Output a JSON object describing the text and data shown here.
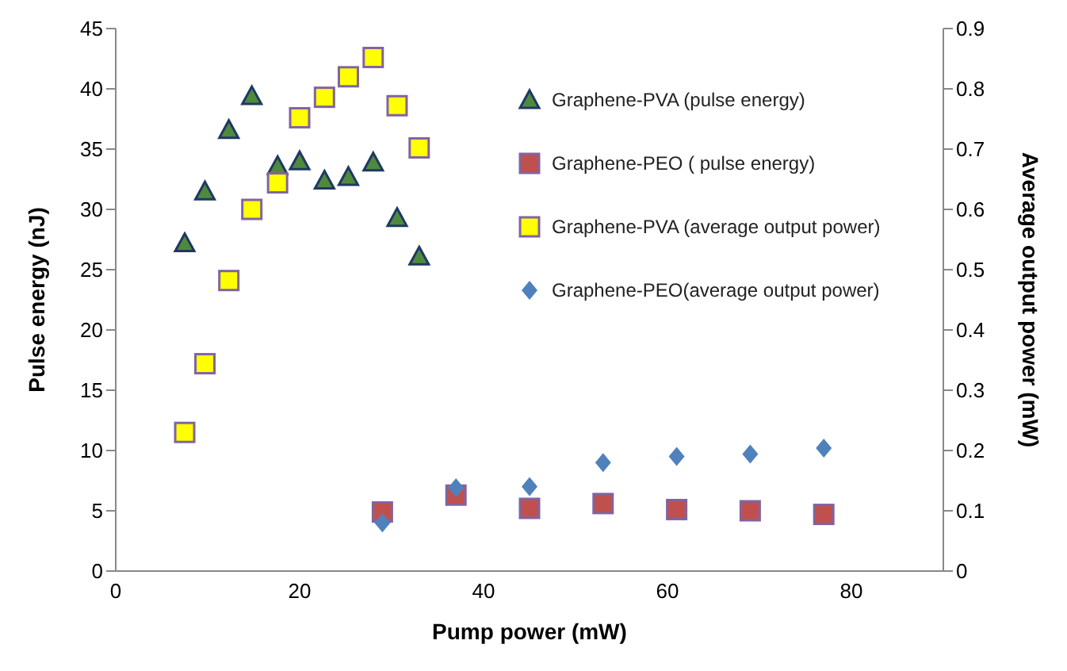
{
  "chart_data": {
    "type": "scatter",
    "xlabel": "Pump power (mW)",
    "ylabel": "Pulse energy (nJ)",
    "y2label": "Average output power (mW)",
    "xlim": [
      0,
      90
    ],
    "xticks": [
      0,
      20,
      40,
      60,
      80
    ],
    "ylim": [
      0,
      45
    ],
    "yticks": [
      0,
      5,
      10,
      15,
      20,
      25,
      30,
      35,
      40,
      45
    ],
    "y2lim": [
      0,
      0.9
    ],
    "y2ticks": [
      0,
      0.1,
      0.2,
      0.3,
      0.4,
      0.5,
      0.6,
      0.7,
      0.8,
      0.9
    ],
    "grid": false,
    "legend": "top right",
    "series": [
      {
        "name": "Graphene-PVA (pulse energy)",
        "color": "#4f8a3c",
        "marker": "triangle",
        "x": [
          7.5,
          9.7,
          12.3,
          14.8,
          17.6,
          20,
          22.7,
          25.3,
          28,
          30.6,
          33
        ],
        "values": [
          27.2,
          31.5,
          36.6,
          39.4,
          33.6,
          34,
          32.4,
          32.7,
          33.9,
          29.3,
          26.1
        ]
      },
      {
        "name": "Graphene-PEO ( pulse energy)",
        "color": "#c0504d",
        "marker": "square",
        "x": [
          29,
          37,
          45,
          53,
          61,
          69,
          77
        ],
        "values": [
          4.9,
          6.3,
          5.2,
          5.6,
          5.1,
          5.0,
          4.7
        ]
      },
      {
        "name": "Graphene-PVA (average output power)",
        "color": "#ffff00",
        "marker": "square",
        "axis": "y2",
        "x": [
          7.5,
          9.7,
          12.3,
          14.8,
          17.6,
          20,
          22.7,
          25.3,
          28,
          30.6,
          33
        ],
        "values": [
          0.23,
          0.344,
          0.482,
          0.6,
          0.644,
          0.752,
          0.786,
          0.82,
          0.852,
          0.772,
          0.702
        ]
      },
      {
        "name": "Graphene-PEO(average output power)",
        "color": "#4f81bd",
        "marker": "diamond",
        "axis": "y2",
        "x": [
          29,
          37,
          45,
          53,
          61,
          69,
          77
        ],
        "values": [
          0.08,
          0.138,
          0.14,
          0.18,
          0.19,
          0.194,
          0.204
        ]
      }
    ]
  }
}
